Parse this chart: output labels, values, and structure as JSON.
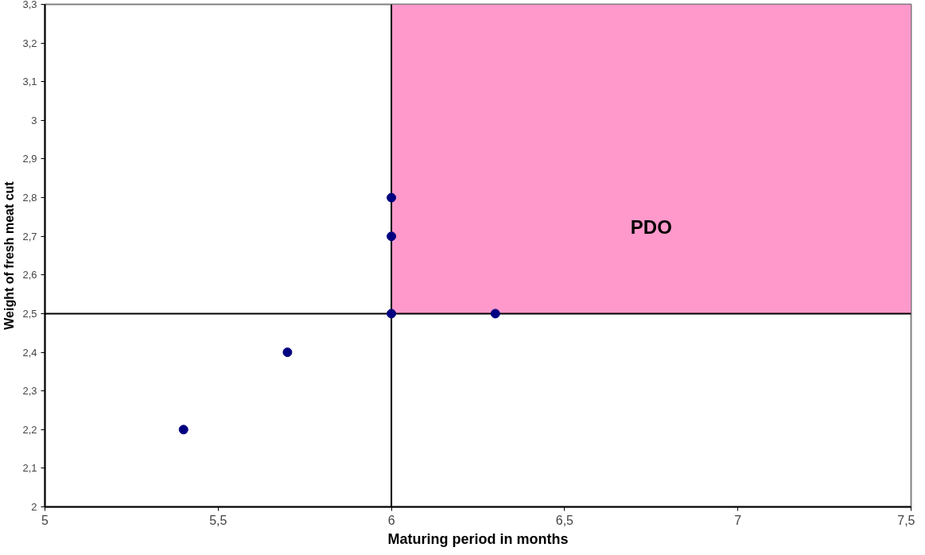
{
  "chart_data": {
    "type": "scatter",
    "xlabel": "Maturing period in months",
    "ylabel": "Weight of fresh meat cut",
    "x": [
      5.4,
      5.7,
      6.0,
      6.0,
      6.0,
      6.3
    ],
    "series": [
      {
        "color": "#000080",
        "values": [
          2.2,
          2.4,
          2.8,
          2.7,
          2.5,
          2.5
        ]
      }
    ],
    "marker": "circle",
    "grid": false,
    "xlim": [
      5,
      7.5
    ],
    "ylim": [
      2,
      3.3
    ],
    "xticks": [
      5,
      {
        "value": 5.5,
        "label": "5,5"
      },
      6,
      {
        "value": 6.5,
        "label": "6,5"
      },
      7,
      {
        "value": 7.5,
        "label": "7,5"
      }
    ],
    "yticks": [
      2,
      {
        "value": 2.1,
        "label": "2,1"
      },
      {
        "value": 2.2,
        "label": "2,2"
      },
      {
        "value": 2.3,
        "label": "2,3"
      },
      {
        "value": 2.4,
        "label": "2,4"
      },
      {
        "value": 2.5,
        "label": "2,5"
      },
      {
        "value": 2.6,
        "label": "2,6"
      },
      {
        "value": 2.7,
        "label": "2,7"
      },
      {
        "value": 2.8,
        "label": "2,8"
      },
      {
        "value": 2.9,
        "label": "2,9"
      },
      3,
      {
        "value": 3.1,
        "label": "3,1"
      },
      {
        "value": 3.2,
        "label": "3,2"
      },
      {
        "value": 3.3,
        "label": "3,3"
      }
    ],
    "ref_lines": [
      {
        "axis": "x",
        "value": 6,
        "color": "#000000"
      },
      {
        "axis": "y",
        "value": 2.5,
        "color": "#000000"
      }
    ],
    "bands": [
      {
        "axis": "x",
        "from": 6,
        "to": 7.5,
        "label": "PDO",
        "color": "#ff99cc"
      }
    ]
  }
}
